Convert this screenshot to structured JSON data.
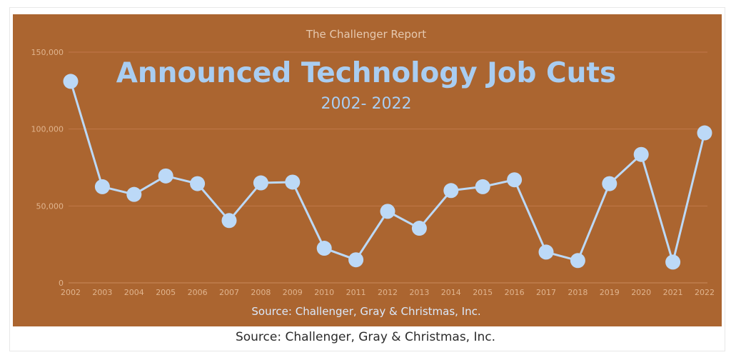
{
  "report_label": "The Challenger Report",
  "caption": "Source: Challenger, Gray & Christmas, Inc.",
  "colors": {
    "background": "#ab6530",
    "series": "#bcd9f7",
    "title": "#a9cdf1",
    "tick": "#e0b48e",
    "grid": "#c0784a",
    "source": "#dbe9fb"
  },
  "chart_data": {
    "type": "line",
    "title": "Announced Technology Job Cuts",
    "subtitle": "2002- 2022",
    "source": "Source: Challenger, Gray & Christmas, Inc.",
    "xlabel": "",
    "ylabel": "",
    "ylim": [
      0,
      150000
    ],
    "yticks": [
      0,
      50000,
      100000,
      150000
    ],
    "ytick_labels": [
      "0",
      "50,000",
      "100,000",
      "150,000"
    ],
    "grid": true,
    "legend": "none",
    "categories": [
      "2002",
      "2003",
      "2004",
      "2005",
      "2006",
      "2007",
      "2008",
      "2009",
      "2010",
      "2011",
      "2012",
      "2013",
      "2014",
      "2015",
      "2016",
      "2017",
      "2018",
      "2019",
      "2020",
      "2021",
      "2022"
    ],
    "series": [
      {
        "values": [
          131000,
          62500,
          57500,
          69500,
          64500,
          40500,
          65000,
          65500,
          22500,
          15000,
          46500,
          35500,
          60000,
          62500,
          67000,
          20000,
          14500,
          64500,
          83500,
          13500,
          97500
        ]
      }
    ]
  }
}
